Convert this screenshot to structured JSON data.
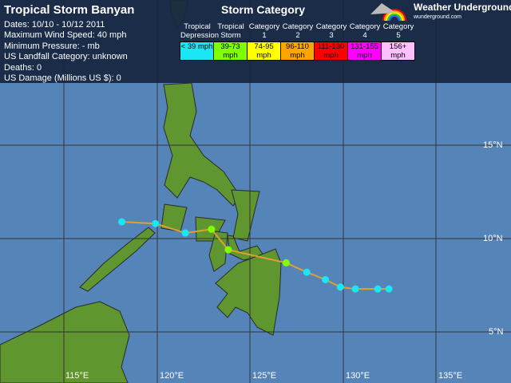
{
  "header": {
    "title": "Tropical Storm Banyan",
    "lines": [
      "Dates: 10/10 - 10/12 2011",
      "Maximum Wind Speed: 40 mph",
      "Minimum Pressure: - mb",
      "US Landfall Category: unknown",
      "Deaths: 0",
      "US Damage (Millions US $): 0"
    ]
  },
  "legend": {
    "title": "Storm Category",
    "categories": [
      {
        "name": "Tropical Depression",
        "range": "< 39 mph",
        "color": "#1ae6f5"
      },
      {
        "name": "Tropical Storm",
        "range": "39-73 mph",
        "color": "#80ff00"
      },
      {
        "name": "Category 1",
        "range": "74-95 mph",
        "color": "#ffff00"
      },
      {
        "name": "Category 2",
        "range": "96-110 mph",
        "color": "#ffa500"
      },
      {
        "name": "Category 3",
        "range": "111-130 mph",
        "color": "#ff0000"
      },
      {
        "name": "Category 4",
        "range": "131-155 mph",
        "color": "#ff00ff"
      },
      {
        "name": "Category 5",
        "range": "156+ mph",
        "color": "#ffc0ff"
      }
    ]
  },
  "logo": {
    "name": "Weather Underground",
    "url_text": "wunderground.com"
  },
  "map": {
    "lon_labels": [
      "115°E",
      "120°E",
      "125°E",
      "130°E",
      "135°E"
    ],
    "lat_labels": [
      "15°N",
      "10°N",
      "5°N"
    ],
    "ocean_color": "#5584b8",
    "land_color": "#5f962f",
    "track_color": "#e0a030",
    "track": [
      {
        "lon": 132.4,
        "lat": 7.3,
        "cat": "TD"
      },
      {
        "lon": 131.8,
        "lat": 7.3,
        "cat": "TD"
      },
      {
        "lon": 130.6,
        "lat": 7.3,
        "cat": "TD"
      },
      {
        "lon": 129.8,
        "lat": 7.4,
        "cat": "TD"
      },
      {
        "lon": 129.0,
        "lat": 7.8,
        "cat": "TD"
      },
      {
        "lon": 128.0,
        "lat": 8.2,
        "cat": "TD"
      },
      {
        "lon": 126.9,
        "lat": 8.7,
        "cat": "TS"
      },
      {
        "lon": 123.8,
        "lat": 9.4,
        "cat": "TS"
      },
      {
        "lon": 122.9,
        "lat": 10.5,
        "cat": "TS"
      },
      {
        "lon": 121.5,
        "lat": 10.3,
        "cat": "TD"
      },
      {
        "lon": 119.9,
        "lat": 10.8,
        "cat": "TD"
      },
      {
        "lon": 118.1,
        "lat": 10.9,
        "cat": "TD"
      }
    ]
  }
}
